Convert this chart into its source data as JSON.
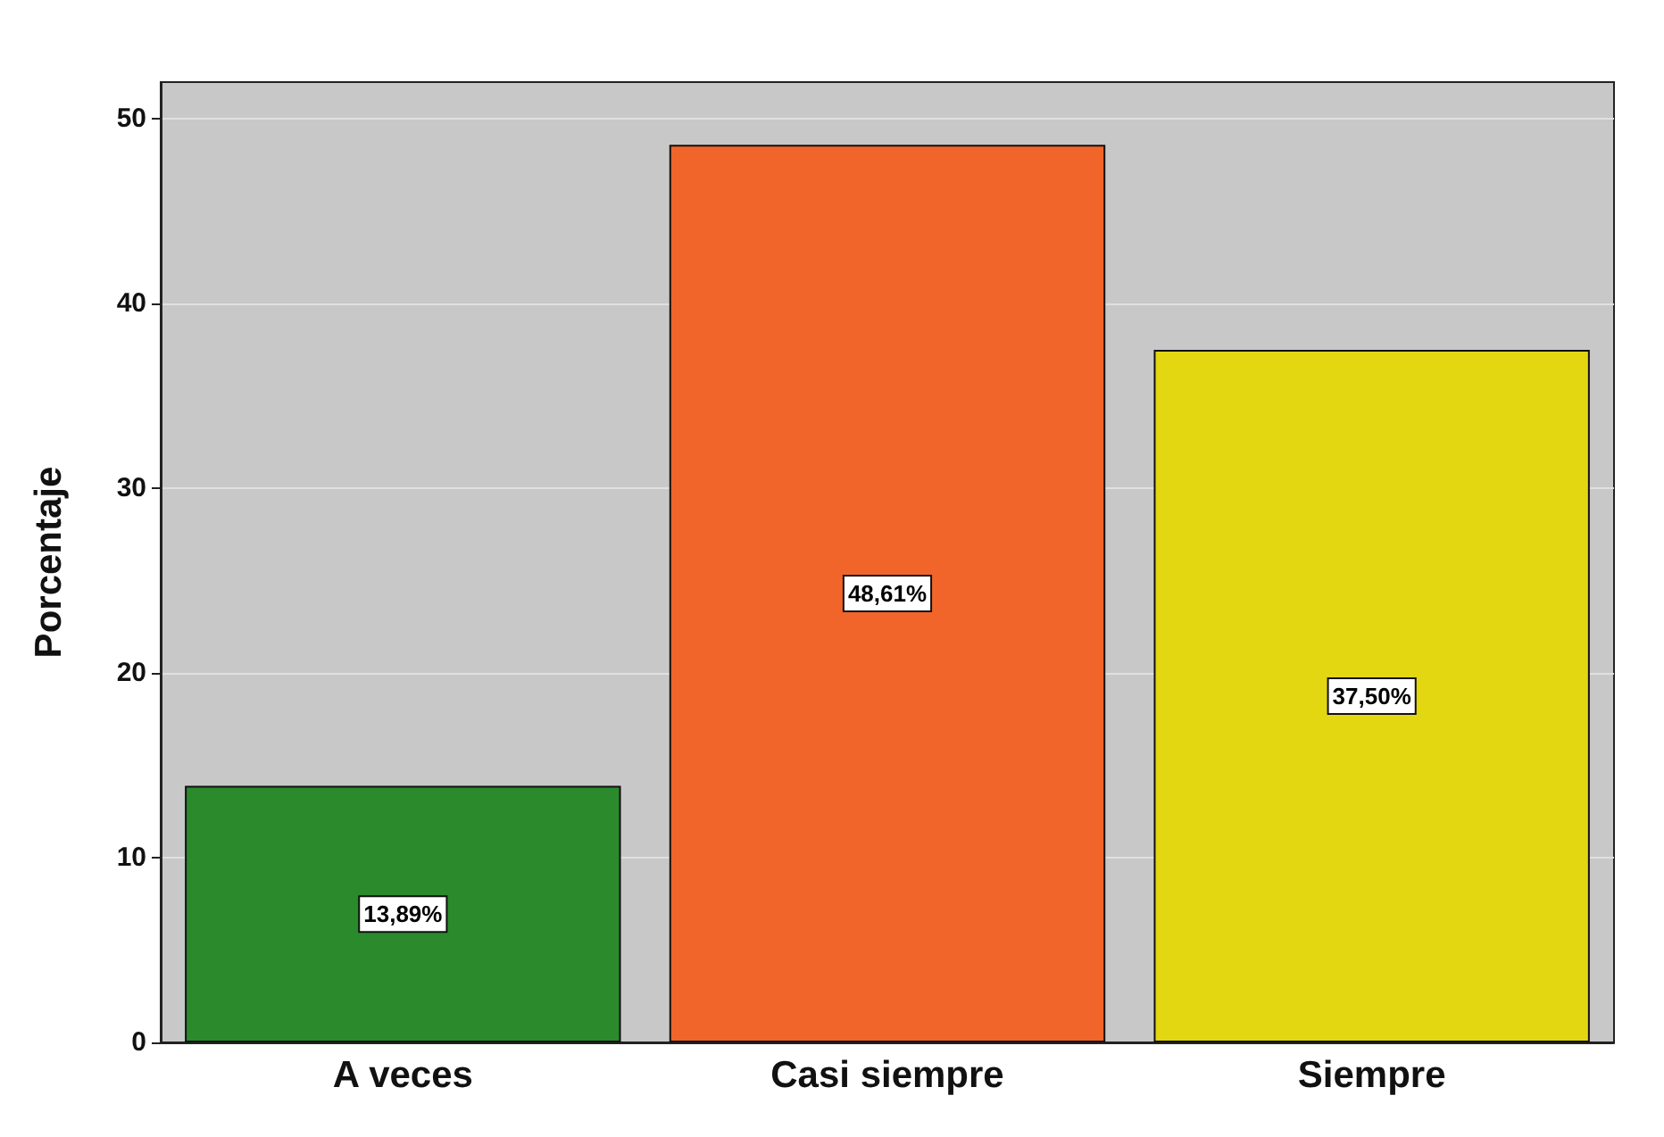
{
  "chart_data": {
    "type": "bar",
    "ylabel": "Porcentaje",
    "categories": [
      "A veces",
      "Casi siempre",
      "Siempre"
    ],
    "values": [
      13.89,
      48.61,
      37.5
    ],
    "colors": [
      "#2a8a2c",
      "#f2652a",
      "#e3d712"
    ],
    "value_labels": [
      "13,89%",
      "48,61%",
      "37,50%"
    ],
    "ylim": [
      0,
      52
    ],
    "yticks": [
      0,
      10,
      20,
      30,
      40,
      50
    ],
    "grid": "y"
  }
}
